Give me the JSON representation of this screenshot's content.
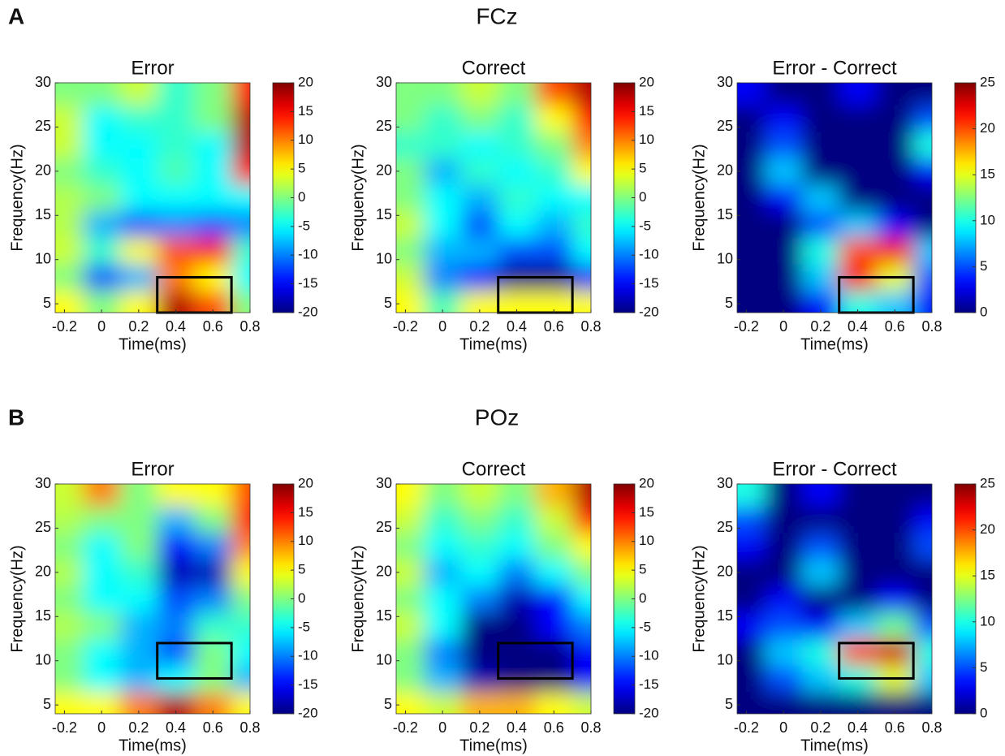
{
  "sections": [
    {
      "label": "A",
      "title": "FCz"
    },
    {
      "label": "B",
      "title": "POz"
    }
  ],
  "chart_data": [
    {
      "type": "heatmap",
      "title": "Error",
      "xlabel": "Time(ms)",
      "ylabel": "Frequency(Hz)",
      "colormap": "jet",
      "xlim": [
        -0.25,
        0.8
      ],
      "ylim": [
        4,
        30
      ],
      "xticks": [
        -0.2,
        0,
        0.2,
        0.4,
        0.6,
        0.8
      ],
      "yticks": [
        5,
        10,
        15,
        20,
        25,
        30
      ],
      "x": [
        -0.2,
        0,
        0.2,
        0.4,
        0.6,
        0.8
      ],
      "y": [
        5,
        8,
        11,
        14,
        17,
        20,
        23,
        26,
        29
      ],
      "z": [
        [
          5,
          0,
          5,
          18,
          12,
          0
        ],
        [
          0,
          -12,
          -8,
          10,
          5,
          -5
        ],
        [
          3,
          -3,
          5,
          12,
          15,
          -3
        ],
        [
          2,
          -8,
          -12,
          -10,
          -12,
          -10
        ],
        [
          2,
          0,
          -5,
          -5,
          -5,
          -5
        ],
        [
          0,
          -3,
          -5,
          -2,
          -5,
          15
        ],
        [
          3,
          -5,
          -5,
          -3,
          -5,
          18
        ],
        [
          3,
          -5,
          -3,
          -3,
          0,
          18
        ],
        [
          0,
          0,
          3,
          -3,
          0,
          15
        ]
      ],
      "colorbar": {
        "lim": [
          -20,
          20
        ],
        "ticks": [
          -20,
          -15,
          -10,
          -5,
          0,
          5,
          10,
          15,
          20
        ]
      },
      "highlight": {
        "x": [
          0.3,
          0.7
        ],
        "y": [
          4,
          8
        ]
      }
    },
    {
      "type": "heatmap",
      "title": "Correct",
      "xlabel": "Time(ms)",
      "ylabel": "Frequency(Hz)",
      "colormap": "jet",
      "xlim": [
        -0.25,
        0.8
      ],
      "ylim": [
        4,
        30
      ],
      "xticks": [
        -0.2,
        0,
        0.2,
        0.4,
        0.6,
        0.8
      ],
      "yticks": [
        5,
        10,
        15,
        20,
        25,
        30
      ],
      "x": [
        -0.2,
        0,
        0.2,
        0.4,
        0.6,
        0.8
      ],
      "y": [
        5,
        8,
        11,
        14,
        17,
        20,
        23,
        26,
        29
      ],
      "z": [
        [
          5,
          -2,
          5,
          5,
          5,
          5
        ],
        [
          3,
          -10,
          -15,
          -20,
          -20,
          -15
        ],
        [
          0,
          -8,
          -8,
          -12,
          -12,
          -5
        ],
        [
          3,
          -5,
          -12,
          -5,
          -8,
          -3
        ],
        [
          0,
          -5,
          -8,
          -3,
          -5,
          -5
        ],
        [
          0,
          -8,
          -3,
          -5,
          -3,
          5
        ],
        [
          -3,
          -3,
          -5,
          -3,
          0,
          10
        ],
        [
          0,
          -3,
          0,
          -3,
          5,
          15
        ],
        [
          0,
          0,
          3,
          0,
          12,
          18
        ]
      ],
      "colorbar": {
        "lim": [
          -20,
          20
        ],
        "ticks": [
          -20,
          -15,
          -10,
          -5,
          0,
          5,
          10,
          15,
          20
        ]
      },
      "highlight": {
        "x": [
          0.3,
          0.7
        ],
        "y": [
          4,
          8
        ]
      }
    },
    {
      "type": "heatmap",
      "title": "Error - Correct",
      "xlabel": "Time(ms)",
      "ylabel": "Frequency(Hz)",
      "colormap": "jet",
      "xlim": [
        -0.25,
        0.8
      ],
      "ylim": [
        4,
        30
      ],
      "xticks": [
        -0.2,
        0,
        0.2,
        0.4,
        0.6,
        0.8
      ],
      "yticks": [
        5,
        10,
        15,
        20,
        25,
        30
      ],
      "x": [
        -0.2,
        0,
        0.2,
        0.4,
        0.6,
        0.8
      ],
      "y": [
        5,
        8,
        11,
        14,
        17,
        20,
        23,
        26,
        29
      ],
      "z": [
        [
          0,
          0,
          3,
          10,
          8,
          3
        ],
        [
          0,
          0,
          8,
          22,
          15,
          5
        ],
        [
          0,
          0,
          10,
          20,
          22,
          8
        ],
        [
          0,
          0,
          5,
          8,
          3,
          0
        ],
        [
          0,
          3,
          8,
          0,
          0,
          0
        ],
        [
          0,
          8,
          0,
          0,
          0,
          3
        ],
        [
          0,
          5,
          0,
          0,
          0,
          10
        ],
        [
          0,
          3,
          0,
          0,
          0,
          5
        ],
        [
          3,
          0,
          0,
          3,
          0,
          0
        ]
      ],
      "colorbar": {
        "lim": [
          0,
          25
        ],
        "ticks": [
          0,
          5,
          10,
          15,
          20,
          25
        ]
      },
      "highlight": {
        "x": [
          0.3,
          0.7
        ],
        "y": [
          4,
          8
        ]
      }
    },
    {
      "type": "heatmap",
      "title": "Error",
      "xlabel": "Time(ms)",
      "ylabel": "Frequency(Hz)",
      "colormap": "jet",
      "xlim": [
        -0.25,
        0.8
      ],
      "ylim": [
        4,
        30
      ],
      "xticks": [
        -0.2,
        0,
        0.2,
        0.4,
        0.6,
        0.8
      ],
      "yticks": [
        5,
        10,
        15,
        20,
        25,
        30
      ],
      "x": [
        -0.2,
        0,
        0.2,
        0.4,
        0.6,
        0.8
      ],
      "y": [
        5,
        8,
        11,
        14,
        17,
        20,
        23,
        26,
        29
      ],
      "z": [
        [
          5,
          5,
          10,
          18,
          10,
          5
        ],
        [
          0,
          -5,
          -8,
          -5,
          0,
          -8
        ],
        [
          0,
          -5,
          -8,
          -12,
          0,
          -5
        ],
        [
          2,
          0,
          -8,
          -10,
          -3,
          -3
        ],
        [
          0,
          -5,
          -5,
          -12,
          -10,
          0
        ],
        [
          2,
          -5,
          -3,
          -18,
          -18,
          5
        ],
        [
          0,
          -5,
          0,
          -15,
          -10,
          10
        ],
        [
          2,
          0,
          0,
          -8,
          0,
          15
        ],
        [
          3,
          10,
          0,
          5,
          5,
          12
        ]
      ],
      "colorbar": {
        "lim": [
          -20,
          20
        ],
        "ticks": [
          -20,
          -15,
          -10,
          -5,
          0,
          5,
          10,
          15,
          20
        ]
      },
      "highlight": {
        "x": [
          0.3,
          0.7
        ],
        "y": [
          8,
          12
        ]
      }
    },
    {
      "type": "heatmap",
      "title": "Correct",
      "xlabel": "Time(ms)",
      "ylabel": "Frequency(Hz)",
      "colormap": "jet",
      "xlim": [
        -0.25,
        0.8
      ],
      "ylim": [
        4,
        30
      ],
      "xticks": [
        -0.2,
        0,
        0.2,
        0.4,
        0.6,
        0.8
      ],
      "yticks": [
        5,
        10,
        15,
        20,
        25,
        30
      ],
      "x": [
        -0.2,
        0,
        0.2,
        0.4,
        0.6,
        0.8
      ],
      "y": [
        5,
        8,
        11,
        14,
        17,
        20,
        23,
        26,
        29
      ],
      "z": [
        [
          5,
          3,
          8,
          8,
          5,
          3
        ],
        [
          0,
          -8,
          -18,
          -20,
          -20,
          -15
        ],
        [
          0,
          -10,
          -20,
          -20,
          -20,
          -15
        ],
        [
          3,
          -5,
          -20,
          -20,
          -15,
          -10
        ],
        [
          0,
          -5,
          -10,
          -18,
          -15,
          -5
        ],
        [
          3,
          -8,
          -5,
          -10,
          -5,
          0
        ],
        [
          0,
          -5,
          -3,
          -5,
          0,
          5
        ],
        [
          3,
          -3,
          0,
          -3,
          3,
          15
        ],
        [
          5,
          0,
          3,
          0,
          8,
          18
        ]
      ],
      "colorbar": {
        "lim": [
          -20,
          20
        ],
        "ticks": [
          -20,
          -15,
          -10,
          -5,
          0,
          5,
          10,
          15,
          20
        ]
      },
      "highlight": {
        "x": [
          0.3,
          0.7
        ],
        "y": [
          8,
          12
        ]
      }
    },
    {
      "type": "heatmap",
      "title": "Error - Correct",
      "xlabel": "Time(ms)",
      "ylabel": "Frequency(Hz)",
      "colormap": "jet",
      "xlim": [
        -0.25,
        0.8
      ],
      "ylim": [
        4,
        30
      ],
      "xticks": [
        -0.2,
        0,
        0.2,
        0.4,
        0.6,
        0.8
      ],
      "yticks": [
        5,
        10,
        15,
        20,
        25,
        30
      ],
      "x": [
        -0.2,
        0,
        0.2,
        0.4,
        0.6,
        0.8
      ],
      "y": [
        5,
        8,
        11,
        14,
        17,
        20,
        23,
        26,
        29
      ],
      "z": [
        [
          0,
          0,
          0,
          0,
          0,
          0
        ],
        [
          0,
          5,
          8,
          10,
          15,
          8
        ],
        [
          0,
          8,
          10,
          20,
          23,
          10
        ],
        [
          3,
          5,
          3,
          8,
          12,
          5
        ],
        [
          0,
          3,
          0,
          0,
          3,
          0
        ],
        [
          0,
          0,
          8,
          0,
          0,
          0
        ],
        [
          3,
          0,
          5,
          0,
          0,
          5
        ],
        [
          5,
          0,
          0,
          0,
          0,
          3
        ],
        [
          10,
          0,
          3,
          0,
          0,
          0
        ]
      ],
      "colorbar": {
        "lim": [
          0,
          25
        ],
        "ticks": [
          0,
          5,
          10,
          15,
          20,
          25
        ]
      },
      "highlight": {
        "x": [
          0.3,
          0.7
        ],
        "y": [
          8,
          12
        ]
      }
    }
  ]
}
